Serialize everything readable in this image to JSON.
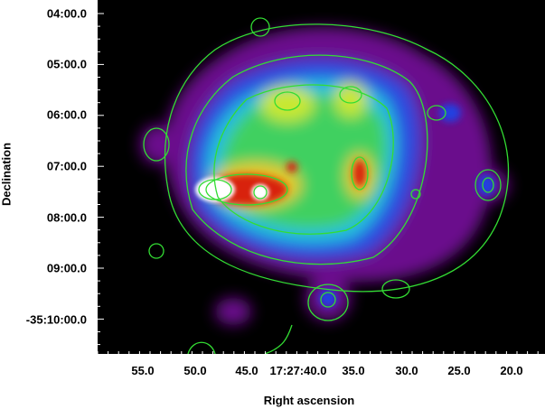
{
  "figure": {
    "xlabel": "Right ascension",
    "ylabel": "Declination",
    "x_ticks": [
      "55.0",
      "50.0",
      "45.0",
      "17:27:40.0",
      "35.0",
      "30.0",
      "25.0",
      "20.0"
    ],
    "y_ticks": [
      "04:00.0",
      "05:00.0",
      "06:00.0",
      "07:00.0",
      "08:00.0",
      "09:00.0",
      "-35:10:00.0"
    ],
    "colormap": "rainbow (black-purple-blue-cyan-green-yellow-red-white)",
    "contour_color": "#33dd33",
    "background": "#000000"
  }
}
